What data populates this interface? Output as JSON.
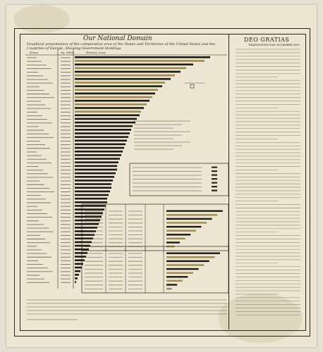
{
  "title": "Our National Domain",
  "subtitle": "Graphical presentation of the comparative area of the States and Territories of the United States and the Countries of Europe, Showing Government Holdings",
  "header": {
    "col_name": "Name",
    "col_area": "Sq. Miles",
    "col_relative": "Relative Area"
  },
  "right_panel": {
    "title": "DEO GRATIAS",
    "date_line": "THANKSGIVING DAY, NOVEMBER 1899"
  },
  "chart_data": {
    "type": "bar",
    "orientation": "horizontal",
    "title": "Our National Domain",
    "series": [
      {
        "name": "",
        "color": "#1c1a16"
      },
      {
        "name": "",
        "color": "#a08a4a"
      }
    ],
    "values": [
      96,
      92,
      84,
      79,
      75,
      71,
      68,
      64,
      62,
      59,
      57,
      55,
      53,
      51,
      49,
      47,
      46,
      44,
      43,
      41,
      40,
      39,
      38,
      37,
      36,
      35,
      34,
      33,
      32,
      31,
      30,
      30,
      29,
      28,
      27,
      26,
      26,
      25,
      24,
      23,
      23,
      22,
      21,
      20,
      19,
      18,
      17,
      16,
      15,
      14,
      13,
      12,
      11,
      10,
      9,
      8,
      7,
      6,
      5,
      4,
      3,
      2,
      1
    ],
    "gold_indices": [
      1,
      3,
      5,
      7,
      9,
      11,
      13,
      15
    ],
    "xlim": [
      0,
      100
    ]
  },
  "box_tables": {
    "upper": {
      "rows": [
        42,
        38,
        34,
        30,
        26,
        22,
        18,
        14,
        10,
        6
      ]
    },
    "lower": {
      "rows": [
        40,
        36,
        32,
        28,
        24,
        20,
        16,
        12,
        8,
        4
      ]
    }
  },
  "colors": {
    "paper": "#ece6d2",
    "ink": "#2a2418",
    "bar_dark": "#1c1a16",
    "bar_gold": "#a08a4a"
  }
}
